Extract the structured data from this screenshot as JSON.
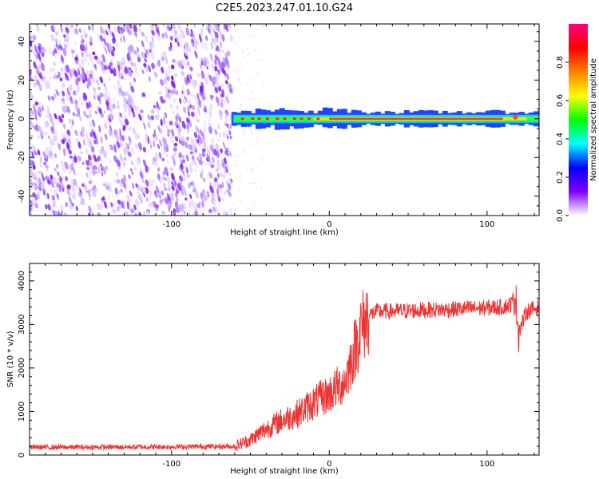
{
  "figure": {
    "title": "C2E5.2023.247.01.10.G24"
  },
  "chart_data": [
    {
      "type": "heatmap",
      "title": "C2E5.2023.247.01.10.G24",
      "xlabel": "Height of straight line (km)",
      "ylabel": "Frequency (Hz)",
      "xlim": [
        -190,
        133
      ],
      "ylim": [
        -50,
        49
      ],
      "xticks": [
        -100,
        0,
        100
      ],
      "yticks": [
        -40,
        -20,
        0,
        20,
        40
      ],
      "noise_region_x": [
        -190,
        -62
      ],
      "signal_region_x": [
        -62,
        133
      ],
      "signal_center_hz": 0,
      "colorbar": {
        "label": "Normalized spectral amplitude",
        "range": [
          0,
          1
        ],
        "ticks": [
          0.0,
          0.2,
          0.4,
          0.6,
          0.8
        ],
        "colors": [
          "#ffffff",
          "#8000ff",
          "#0000ff",
          "#00ffff",
          "#00ff00",
          "#ffff00",
          "#ff8000",
          "#ff0000",
          "#ff0080"
        ]
      }
    },
    {
      "type": "line",
      "xlabel": "Height of straight line (km)",
      "ylabel": "SNR (10 * v/v)",
      "xlim": [
        -190,
        133
      ],
      "ylim": [
        0,
        4400
      ],
      "xticks": [
        -100,
        0,
        100
      ],
      "yticks": [
        0,
        1000,
        2000,
        3000,
        4000
      ],
      "color": "#ee3333",
      "x": [
        -190,
        -150,
        -100,
        -60,
        -50,
        -40,
        -30,
        -20,
        -10,
        0,
        10,
        15,
        20,
        25,
        30,
        40,
        60,
        80,
        100,
        110,
        115,
        118,
        120,
        125,
        133
      ],
      "y": [
        180,
        180,
        190,
        200,
        350,
        600,
        800,
        950,
        1200,
        1400,
        1700,
        2300,
        2900,
        3200,
        3300,
        3300,
        3330,
        3350,
        3380,
        3400,
        3450,
        3700,
        2800,
        3300,
        3400
      ]
    }
  ]
}
